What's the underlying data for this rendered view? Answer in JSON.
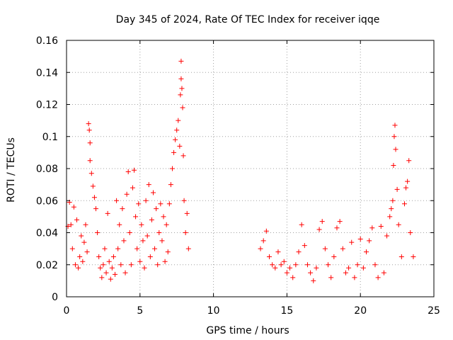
{
  "chart_data": {
    "type": "scatter",
    "title": "Day 345 of 2024, Rate Of TEC Index for receiver iqqe",
    "xlabel": "GPS time / hours",
    "ylabel": "ROTI / TECUs",
    "xlim": [
      0,
      25
    ],
    "ylim": [
      0,
      0.16
    ],
    "x_ticks": [
      0,
      5,
      10,
      15,
      20,
      25
    ],
    "x_tick_labels": [
      "0",
      "5",
      "10",
      "15",
      "20",
      "25"
    ],
    "y_ticks": [
      0,
      0.02,
      0.04,
      0.06,
      0.08,
      0.1,
      0.12,
      0.14,
      0.16
    ],
    "y_tick_labels": [
      "0",
      "0.02",
      "0.04",
      "0.06",
      "0.08",
      "0.1",
      "0.12",
      "0.14",
      "0.16"
    ],
    "grid": true,
    "marker": "+",
    "color": "#ff0000",
    "series": [
      {
        "name": "ROTI",
        "points": [
          [
            0.1,
            0.044
          ],
          [
            0.2,
            0.059
          ],
          [
            0.3,
            0.045
          ],
          [
            0.4,
            0.03
          ],
          [
            0.5,
            0.056
          ],
          [
            0.6,
            0.02
          ],
          [
            0.7,
            0.048
          ],
          [
            0.8,
            0.018
          ],
          [
            0.9,
            0.025
          ],
          [
            1.0,
            0.038
          ],
          [
            1.1,
            0.022
          ],
          [
            1.2,
            0.034
          ],
          [
            1.3,
            0.045
          ],
          [
            1.4,
            0.028
          ],
          [
            1.5,
            0.108
          ],
          [
            1.55,
            0.104
          ],
          [
            1.6,
            0.096
          ],
          [
            1.6,
            0.085
          ],
          [
            1.7,
            0.077
          ],
          [
            1.8,
            0.069
          ],
          [
            1.9,
            0.062
          ],
          [
            2.0,
            0.055
          ],
          [
            2.1,
            0.04
          ],
          [
            2.2,
            0.025
          ],
          [
            2.3,
            0.018
          ],
          [
            2.4,
            0.012
          ],
          [
            2.5,
            0.02
          ],
          [
            2.6,
            0.03
          ],
          [
            2.7,
            0.015
          ],
          [
            2.8,
            0.052
          ],
          [
            2.9,
            0.022
          ],
          [
            3.0,
            0.011
          ],
          [
            3.1,
            0.018
          ],
          [
            3.2,
            0.025
          ],
          [
            3.3,
            0.014
          ],
          [
            3.4,
            0.06
          ],
          [
            3.5,
            0.03
          ],
          [
            3.6,
            0.045
          ],
          [
            3.7,
            0.02
          ],
          [
            3.8,
            0.055
          ],
          [
            3.9,
            0.035
          ],
          [
            4.0,
            0.015
          ],
          [
            4.1,
            0.064
          ],
          [
            4.2,
            0.078
          ],
          [
            4.3,
            0.04
          ],
          [
            4.4,
            0.02
          ],
          [
            4.5,
            0.068
          ],
          [
            4.6,
            0.079
          ],
          [
            4.7,
            0.05
          ],
          [
            4.8,
            0.03
          ],
          [
            4.9,
            0.058
          ],
          [
            5.0,
            0.022
          ],
          [
            5.1,
            0.045
          ],
          [
            5.2,
            0.035
          ],
          [
            5.3,
            0.018
          ],
          [
            5.4,
            0.06
          ],
          [
            5.5,
            0.038
          ],
          [
            5.6,
            0.07
          ],
          [
            5.7,
            0.025
          ],
          [
            5.8,
            0.048
          ],
          [
            5.9,
            0.065
          ],
          [
            6.0,
            0.03
          ],
          [
            6.1,
            0.055
          ],
          [
            6.2,
            0.02
          ],
          [
            6.3,
            0.04
          ],
          [
            6.4,
            0.058
          ],
          [
            6.5,
            0.035
          ],
          [
            6.6,
            0.05
          ],
          [
            6.7,
            0.022
          ],
          [
            6.8,
            0.045
          ],
          [
            6.9,
            0.028
          ],
          [
            7.0,
            0.058
          ],
          [
            7.1,
            0.07
          ],
          [
            7.2,
            0.08
          ],
          [
            7.3,
            0.09
          ],
          [
            7.4,
            0.098
          ],
          [
            7.5,
            0.104
          ],
          [
            7.6,
            0.11
          ],
          [
            7.7,
            0.094
          ],
          [
            7.75,
            0.126
          ],
          [
            7.8,
            0.136
          ],
          [
            7.8,
            0.147
          ],
          [
            7.85,
            0.13
          ],
          [
            7.9,
            0.118
          ],
          [
            7.95,
            0.088
          ],
          [
            8.0,
            0.06
          ],
          [
            8.1,
            0.04
          ],
          [
            8.2,
            0.052
          ],
          [
            8.3,
            0.03
          ]
        ]
      },
      {
        "name": "ROTI",
        "points": [
          [
            13.2,
            0.03
          ],
          [
            13.4,
            0.035
          ],
          [
            13.6,
            0.041
          ],
          [
            13.8,
            0.025
          ],
          [
            14.0,
            0.02
          ],
          [
            14.2,
            0.018
          ],
          [
            14.4,
            0.028
          ],
          [
            14.6,
            0.02
          ],
          [
            14.8,
            0.022
          ],
          [
            15.0,
            0.015
          ],
          [
            15.2,
            0.018
          ],
          [
            15.4,
            0.012
          ],
          [
            15.6,
            0.02
          ],
          [
            15.8,
            0.028
          ],
          [
            16.0,
            0.045
          ],
          [
            16.2,
            0.032
          ],
          [
            16.4,
            0.02
          ],
          [
            16.6,
            0.015
          ],
          [
            16.8,
            0.01
          ],
          [
            17.0,
            0.018
          ],
          [
            17.2,
            0.042
          ],
          [
            17.4,
            0.047
          ],
          [
            17.6,
            0.03
          ],
          [
            17.8,
            0.02
          ],
          [
            18.0,
            0.012
          ],
          [
            18.2,
            0.025
          ],
          [
            18.4,
            0.043
          ],
          [
            18.6,
            0.047
          ],
          [
            18.8,
            0.03
          ],
          [
            19.0,
            0.015
          ],
          [
            19.2,
            0.018
          ],
          [
            19.4,
            0.034
          ],
          [
            19.6,
            0.012
          ],
          [
            19.8,
            0.02
          ],
          [
            20.0,
            0.036
          ],
          [
            20.2,
            0.018
          ],
          [
            20.4,
            0.028
          ],
          [
            20.6,
            0.035
          ],
          [
            20.8,
            0.043
          ],
          [
            21.0,
            0.02
          ],
          [
            21.2,
            0.012
          ],
          [
            21.4,
            0.044
          ],
          [
            21.6,
            0.015
          ],
          [
            21.8,
            0.038
          ],
          [
            22.0,
            0.05
          ],
          [
            22.1,
            0.055
          ],
          [
            22.2,
            0.06
          ],
          [
            22.25,
            0.082
          ],
          [
            22.3,
            0.1
          ],
          [
            22.35,
            0.107
          ],
          [
            22.4,
            0.092
          ],
          [
            22.5,
            0.067
          ],
          [
            22.6,
            0.045
          ],
          [
            22.8,
            0.025
          ],
          [
            23.0,
            0.058
          ],
          [
            23.1,
            0.068
          ],
          [
            23.2,
            0.072
          ],
          [
            23.3,
            0.085
          ],
          [
            23.4,
            0.04
          ],
          [
            23.6,
            0.025
          ]
        ]
      }
    ]
  }
}
